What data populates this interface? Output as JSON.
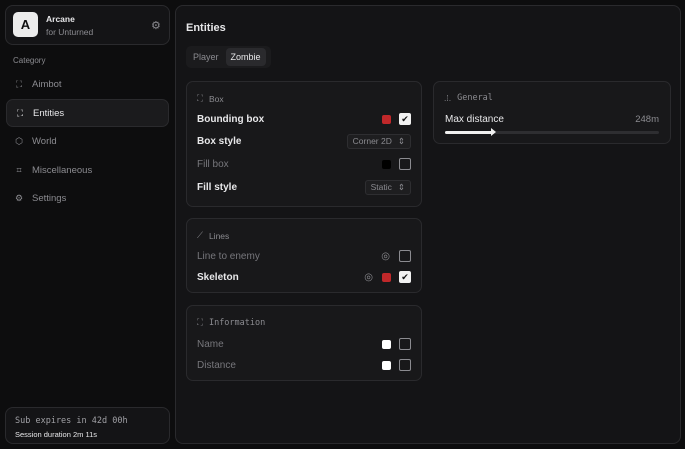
{
  "app": {
    "title": "Arcane",
    "subtitle": "for Unturned",
    "logo_letter": "A"
  },
  "sidebar": {
    "category_label": "Category",
    "items": [
      {
        "label": "Aimbot",
        "icon": "crosshair-icon",
        "active": false
      },
      {
        "label": "Entities",
        "icon": "entities-icon",
        "active": true
      },
      {
        "label": "World",
        "icon": "cube-icon",
        "active": false
      },
      {
        "label": "Miscellaneous",
        "icon": "grid-icon",
        "active": false
      },
      {
        "label": "Settings",
        "icon": "gear-icon",
        "active": false
      }
    ]
  },
  "footer": {
    "sub_expires": "Sub expires in 42d 00h",
    "session": "Session duration 2m 11s"
  },
  "main": {
    "title": "Entities",
    "tabs": [
      {
        "label": "Player",
        "active": false
      },
      {
        "label": "Zombie",
        "active": true
      }
    ]
  },
  "box": {
    "title": "Box",
    "bounding_box": {
      "label": "Bounding box",
      "color": "#c0282a",
      "checked": true
    },
    "box_style": {
      "label": "Box style",
      "value": "Corner 2D"
    },
    "fill_box": {
      "label": "Fill box",
      "color": "#000000",
      "checked": false
    },
    "fill_style": {
      "label": "Fill style",
      "value": "Static"
    }
  },
  "lines": {
    "title": "Lines",
    "line_to_enemy": {
      "label": "Line to enemy",
      "checked": false
    },
    "skeleton": {
      "label": "Skeleton",
      "color": "#c0282a",
      "checked": true
    }
  },
  "information": {
    "title": "Information",
    "name": {
      "label": "Name",
      "color": "#ffffff",
      "checked": false
    },
    "distance": {
      "label": "Distance",
      "color": "#ffffff",
      "checked": false
    }
  },
  "general": {
    "title": "General",
    "max_distance": {
      "label": "Max distance",
      "value": "248m",
      "fill_fraction": 0.23
    }
  }
}
